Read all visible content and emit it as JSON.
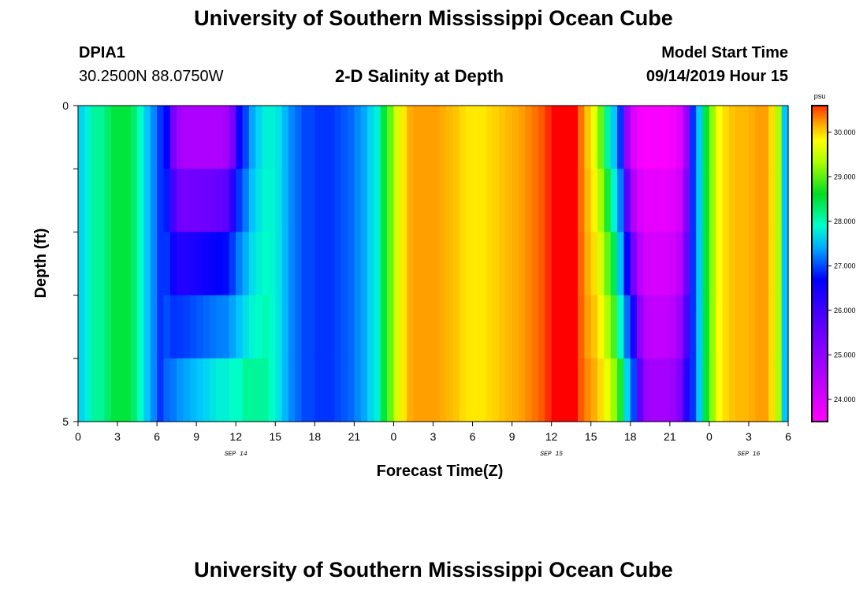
{
  "header": {
    "title_top": "University of Southern Mississippi Ocean Cube",
    "title_bottom": "University of Southern Mississippi Ocean Cube",
    "station_id": "DPIA1",
    "station_coords": "30.2500N 88.0750W",
    "plot_title": "2-D Salinity at Depth",
    "model_start_label": "Model Start Time",
    "model_start_value": "09/14/2019 Hour 15"
  },
  "chart_data": {
    "type": "heatmap",
    "title": "2-D Salinity at Depth",
    "xlabel": "Forecast Time(Z)",
    "ylabel": "Depth (ft)",
    "units": "psu",
    "ylim": [
      0,
      5
    ],
    "y_ticks": [
      0,
      1,
      2,
      3,
      4,
      5
    ],
    "y_tick_labels": [
      "0",
      "",
      "",
      "",
      "",
      "5"
    ],
    "x_range_hours": [
      0,
      54
    ],
    "x_ticks_hours": [
      0,
      3,
      6,
      9,
      12,
      15,
      18,
      21,
      24,
      27,
      30,
      33,
      36,
      39,
      42,
      45,
      48,
      51,
      54
    ],
    "x_tick_labels": [
      "0",
      "3",
      "6",
      "9",
      "12",
      "15",
      "18",
      "21",
      "0",
      "3",
      "6",
      "9",
      "12",
      "15",
      "18",
      "21",
      "0",
      "3",
      "6"
    ],
    "date_labels": [
      {
        "text": "SEP 14",
        "hour": 12
      },
      {
        "text": "SEP 15",
        "hour": 36
      },
      {
        "text": "SEP 16",
        "hour": 51
      }
    ],
    "colorbar": {
      "min": 23.5,
      "max": 30.6,
      "ticks": [
        24.0,
        25.0,
        26.0,
        27.0,
        28.0,
        29.0,
        30.0
      ],
      "tick_labels": [
        "24.000",
        "25.000",
        "26.000",
        "27.000",
        "28.000",
        "29.000",
        "30.000"
      ]
    },
    "x_hours": [
      0,
      0.5,
      1,
      1.5,
      2,
      2.5,
      3,
      3.5,
      4,
      4.5,
      5,
      5.5,
      6,
      6.5,
      7,
      7.5,
      8,
      8.5,
      9,
      9.5,
      10,
      10.5,
      11,
      11.5,
      12,
      12.5,
      13,
      13.5,
      14,
      14.5,
      15,
      15.5,
      16,
      16.5,
      17,
      17.5,
      18,
      18.5,
      19,
      19.5,
      20,
      20.5,
      21,
      21.5,
      22,
      22.5,
      23,
      23.5,
      24,
      24.5,
      25,
      25.5,
      26,
      26.5,
      27,
      27.5,
      28,
      28.5,
      29,
      29.5,
      30,
      30.5,
      31,
      31.5,
      32,
      32.5,
      33,
      33.5,
      34,
      34.5,
      35,
      35.5,
      36,
      36.5,
      37,
      37.5,
      38,
      38.5,
      39,
      39.5,
      40,
      40.5,
      41,
      41.5,
      42,
      42.5,
      43,
      43.5,
      44,
      44.5,
      45,
      45.5,
      46,
      46.5,
      47,
      47.5,
      48,
      48.5,
      49,
      49.5,
      50,
      50.5,
      51,
      51.5,
      52,
      52.5,
      53,
      53.5,
      54
    ],
    "surface_salinity": [
      27.6,
      27.8,
      28.0,
      28.0,
      28.1,
      28.2,
      28.2,
      28.2,
      28.1,
      27.9,
      27.5,
      27.1,
      26.6,
      26.3,
      25.4,
      24.9,
      24.8,
      24.8,
      24.8,
      24.8,
      24.8,
      24.8,
      24.9,
      25.4,
      26.2,
      26.7,
      27.3,
      27.6,
      27.8,
      27.8,
      27.7,
      27.4,
      27.1,
      26.9,
      26.7,
      26.7,
      26.6,
      26.6,
      26.6,
      26.7,
      26.8,
      26.9,
      27.1,
      27.3,
      27.6,
      27.8,
      28.2,
      28.6,
      29.1,
      29.5,
      30.0,
      30.1,
      30.1,
      30.1,
      30.1,
      30.0,
      29.9,
      29.8,
      29.6,
      29.5,
      29.5,
      29.5,
      29.6,
      29.7,
      29.8,
      29.9,
      30.0,
      30.1,
      30.2,
      30.3,
      30.4,
      30.5,
      30.6,
      30.6,
      30.6,
      30.6,
      30.3,
      29.8,
      29.2,
      28.6,
      28.0,
      27.5,
      26.6,
      25.0,
      24.1,
      23.7,
      23.6,
      23.6,
      23.6,
      23.6,
      23.7,
      24.0,
      25.0,
      26.6,
      27.5,
      28.2,
      28.8,
      29.3,
      29.6,
      29.8,
      29.9,
      29.9,
      30.0,
      30.1,
      30.1,
      29.6,
      28.9,
      27.5,
      26.7
    ],
    "deep_salinity": [
      27.6,
      27.8,
      28.0,
      28.0,
      28.1,
      28.2,
      28.2,
      28.2,
      28.1,
      27.9,
      27.5,
      27.1,
      26.6,
      26.9,
      27.0,
      27.2,
      27.3,
      27.4,
      27.5,
      27.6,
      27.7,
      27.8,
      27.8,
      27.9,
      27.9,
      28.0,
      28.0,
      28.0,
      28.0,
      27.9,
      27.7,
      27.4,
      27.1,
      26.9,
      26.7,
      26.7,
      26.6,
      26.6,
      26.6,
      26.7,
      26.8,
      26.9,
      27.1,
      27.3,
      27.6,
      27.8,
      28.2,
      28.6,
      29.1,
      29.5,
      30.0,
      30.1,
      30.1,
      30.1,
      30.1,
      30.0,
      29.9,
      29.8,
      29.6,
      29.5,
      29.5,
      29.5,
      29.6,
      29.7,
      29.8,
      29.9,
      30.0,
      30.1,
      30.2,
      30.3,
      30.4,
      30.5,
      30.6,
      30.6,
      30.6,
      30.6,
      30.4,
      30.2,
      30.0,
      29.6,
      29.2,
      28.8,
      28.3,
      27.6,
      26.7,
      25.6,
      25.0,
      24.9,
      24.9,
      24.9,
      25.0,
      25.3,
      26.0,
      26.6,
      27.5,
      28.2,
      28.8,
      29.3,
      29.6,
      29.8,
      29.9,
      29.9,
      30.0,
      30.1,
      30.1,
      29.6,
      28.9,
      27.5,
      26.7
    ]
  }
}
